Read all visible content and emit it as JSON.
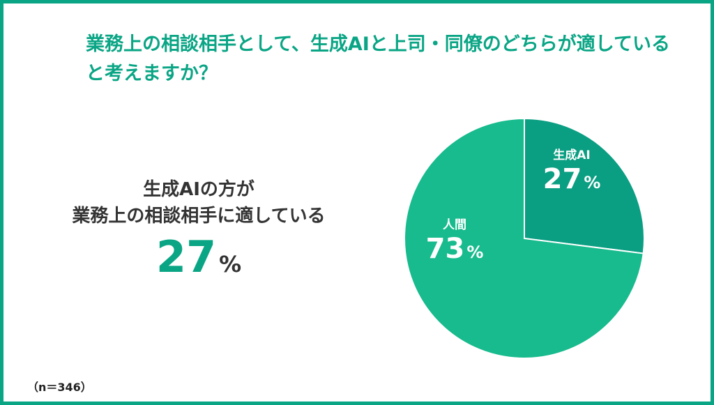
{
  "title": "業務上の相談相手として、生成AIと上司・同僚のどちらが適していると考えますか？",
  "summary": {
    "line1": "生成AIの方が",
    "line2": "業務上の相談相手に適している",
    "value": "27",
    "unit": "%"
  },
  "sample_note": "（n＝346）",
  "colors": {
    "accent": "#0aa585",
    "slice_ai": "#0a9e82",
    "slice_human": "#17bb8d",
    "text_dark": "#333333"
  },
  "chart_data": {
    "type": "pie",
    "title": "業務上の相談相手として、生成AIと上司・同僚のどちらが適していると考えますか？",
    "unit": "%",
    "slices": [
      {
        "label": "生成AI",
        "value": 27,
        "color": "#0a9e82"
      },
      {
        "label": "人間",
        "value": 73,
        "color": "#17bb8d"
      }
    ],
    "legend": "none",
    "start_angle": "12 o'clock, clockwise"
  }
}
